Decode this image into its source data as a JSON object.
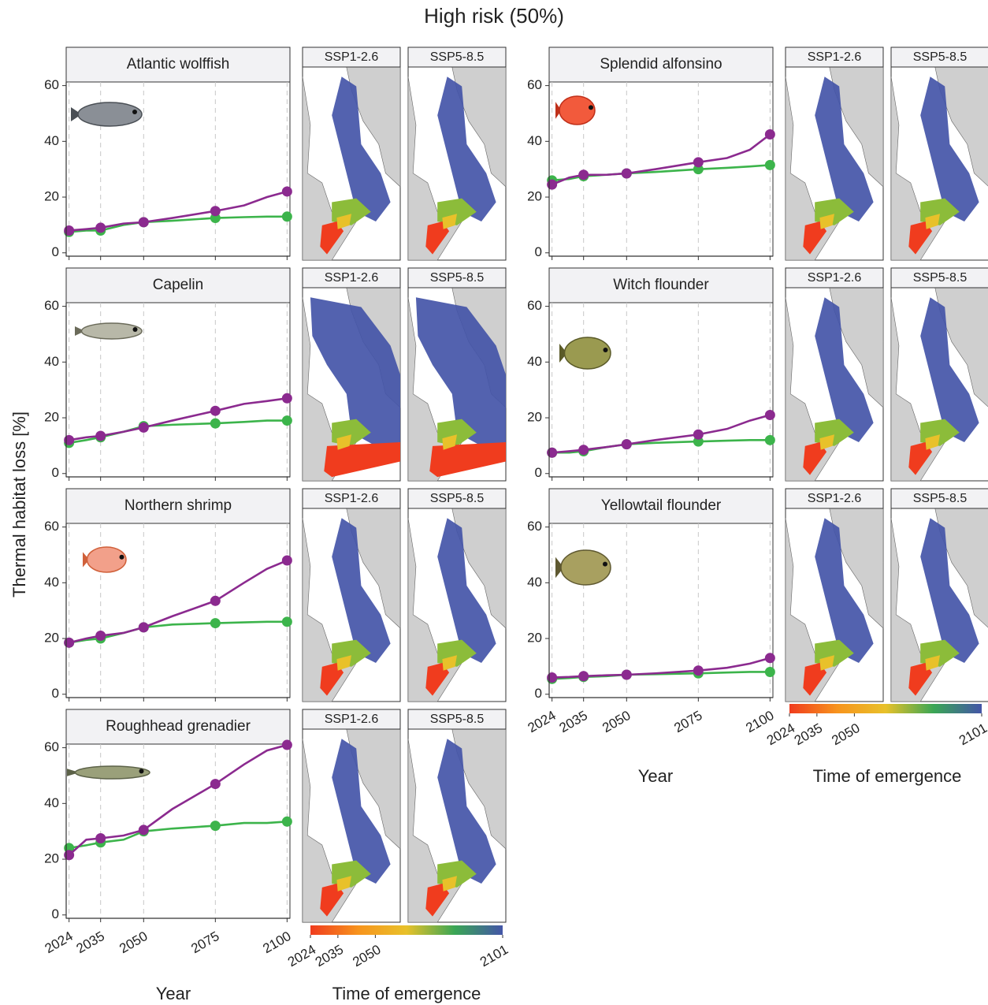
{
  "title": "High risk (50%)",
  "y_label": "Thermal habitat loss [%]",
  "columns": [
    {
      "x_label": "Year",
      "colorbar": {
        "title": "Time of emergence",
        "lim": [
          2024,
          2101
        ],
        "ticks": [
          2024,
          2035,
          2050,
          2101
        ],
        "colors": [
          "#f03c1e",
          "#f7941d",
          "#e8c12a",
          "#3aa655",
          "#4455a8"
        ]
      }
    },
    {
      "x_label": "Year",
      "colorbar": {
        "title": "Time of emergence",
        "lim": [
          2024,
          2101
        ],
        "ticks": [
          2024,
          2035,
          2050,
          2101
        ],
        "colors": [
          "#f03c1e",
          "#f7941d",
          "#e8c12a",
          "#3aa655",
          "#4455a8"
        ]
      }
    }
  ],
  "chart_data": [
    {
      "type": "line",
      "title": "Atlantic wolffish",
      "x": [
        2024,
        2030,
        2035,
        2043,
        2050,
        2060,
        2075,
        2085,
        2093,
        2100
      ],
      "xlim": [
        2023,
        2101
      ],
      "xticks": [
        2024,
        2035,
        2050,
        2075,
        2100
      ],
      "ylim": [
        -1.2,
        61.3
      ],
      "yticks": [
        0,
        20,
        40,
        60
      ],
      "grid": true,
      "series": [
        {
          "name": "SSP1-2.6",
          "color": "#3cb44b",
          "values": [
            7.5,
            8,
            8,
            10,
            11,
            11.5,
            12.5,
            12.8,
            13,
            13
          ]
        },
        {
          "name": "SSP5-8.5",
          "color": "#8b2a8f",
          "values": [
            8,
            8.5,
            9,
            10.5,
            11,
            12.5,
            15,
            17,
            20,
            22
          ]
        }
      ]
    },
    {
      "type": "line",
      "title": "Capelin",
      "x": [
        2024,
        2030,
        2035,
        2043,
        2050,
        2060,
        2075,
        2085,
        2093,
        2100
      ],
      "xlim": [
        2023,
        2101
      ],
      "xticks": [
        2024,
        2035,
        2050,
        2075,
        2100
      ],
      "ylim": [
        -1.2,
        61.3
      ],
      "yticks": [
        0,
        20,
        40,
        60
      ],
      "grid": true,
      "series": [
        {
          "name": "SSP1-2.6",
          "color": "#3cb44b",
          "values": [
            11,
            12,
            13,
            15,
            17,
            17.5,
            18,
            18.5,
            19,
            19
          ]
        },
        {
          "name": "SSP5-8.5",
          "color": "#8b2a8f",
          "values": [
            12,
            13,
            13.5,
            15,
            16.5,
            19,
            22.5,
            25,
            26,
            27
          ]
        }
      ]
    },
    {
      "type": "line",
      "title": "Northern shrimp",
      "x": [
        2024,
        2030,
        2035,
        2043,
        2050,
        2060,
        2075,
        2085,
        2093,
        2100
      ],
      "xlim": [
        2023,
        2101
      ],
      "xticks": [
        2024,
        2035,
        2050,
        2075,
        2100
      ],
      "ylim": [
        -1.2,
        61.3
      ],
      "yticks": [
        0,
        20,
        40,
        60
      ],
      "grid": true,
      "series": [
        {
          "name": "SSP1-2.6",
          "color": "#3cb44b",
          "values": [
            18.5,
            19.5,
            20,
            22,
            24,
            25,
            25.5,
            25.8,
            26,
            26
          ]
        },
        {
          "name": "SSP5-8.5",
          "color": "#8b2a8f",
          "values": [
            18.5,
            20,
            21,
            22,
            24,
            28,
            33.5,
            40,
            45,
            48
          ]
        }
      ]
    },
    {
      "type": "line",
      "title": "Roughhead grenadier",
      "x": [
        2024,
        2030,
        2035,
        2043,
        2050,
        2060,
        2075,
        2085,
        2093,
        2100
      ],
      "xlim": [
        2023,
        2101
      ],
      "xticks": [
        2024,
        2035,
        2050,
        2075,
        2100
      ],
      "ylim": [
        -1.2,
        61.3
      ],
      "yticks": [
        0,
        20,
        40,
        60
      ],
      "grid": true,
      "series": [
        {
          "name": "SSP1-2.6",
          "color": "#3cb44b",
          "values": [
            24,
            25,
            26,
            27,
            30,
            31,
            32,
            33,
            33,
            33.5
          ]
        },
        {
          "name": "SSP5-8.5",
          "color": "#8b2a8f",
          "values": [
            21.5,
            27,
            27.5,
            28.5,
            30.5,
            38,
            47,
            54,
            59,
            61
          ]
        }
      ]
    },
    {
      "type": "line",
      "title": "Splendid alfonsino",
      "x": [
        2024,
        2030,
        2035,
        2043,
        2050,
        2060,
        2075,
        2085,
        2093,
        2100
      ],
      "xlim": [
        2023,
        2101
      ],
      "xticks": [
        2024,
        2035,
        2050,
        2075,
        2100
      ],
      "ylim": [
        -1.2,
        61.3
      ],
      "yticks": [
        0,
        20,
        40,
        60
      ],
      "grid": true,
      "series": [
        {
          "name": "SSP1-2.6",
          "color": "#3cb44b",
          "values": [
            26,
            26.5,
            27.5,
            28,
            28.5,
            29,
            30,
            30.5,
            31,
            31.5
          ]
        },
        {
          "name": "SSP5-8.5",
          "color": "#8b2a8f",
          "values": [
            24.5,
            27,
            28,
            28,
            28.5,
            30,
            32.5,
            34,
            37,
            42.5
          ]
        }
      ]
    },
    {
      "type": "line",
      "title": "Witch flounder",
      "x": [
        2024,
        2030,
        2035,
        2043,
        2050,
        2060,
        2075,
        2085,
        2093,
        2100
      ],
      "xlim": [
        2023,
        2101
      ],
      "xticks": [
        2024,
        2035,
        2050,
        2075,
        2100
      ],
      "ylim": [
        -1.2,
        61.3
      ],
      "yticks": [
        0,
        20,
        40,
        60
      ],
      "grid": true,
      "series": [
        {
          "name": "SSP1-2.6",
          "color": "#3cb44b",
          "values": [
            7.5,
            7.5,
            8,
            9.5,
            10.5,
            11,
            11.5,
            11.8,
            12,
            12
          ]
        },
        {
          "name": "SSP5-8.5",
          "color": "#8b2a8f",
          "values": [
            7.5,
            8,
            8.5,
            9.5,
            10.5,
            12,
            14,
            16,
            19,
            21
          ]
        }
      ]
    },
    {
      "type": "line",
      "title": "Yellowtail flounder",
      "x": [
        2024,
        2030,
        2035,
        2043,
        2050,
        2060,
        2075,
        2085,
        2093,
        2100
      ],
      "xlim": [
        2023,
        2101
      ],
      "xticks": [
        2024,
        2035,
        2050,
        2075,
        2100
      ],
      "ylim": [
        -1.2,
        61.3
      ],
      "yticks": [
        0,
        20,
        40,
        60
      ],
      "grid": true,
      "series": [
        {
          "name": "SSP1-2.6",
          "color": "#3cb44b",
          "values": [
            5.5,
            5.8,
            6.2,
            6.5,
            7,
            7.2,
            7.5,
            7.8,
            8,
            8
          ]
        },
        {
          "name": "SSP5-8.5",
          "color": "#8b2a8f",
          "values": [
            6,
            6.2,
            6.5,
            6.8,
            7,
            7.5,
            8.5,
            9.5,
            11,
            13
          ]
        }
      ]
    }
  ]
}
